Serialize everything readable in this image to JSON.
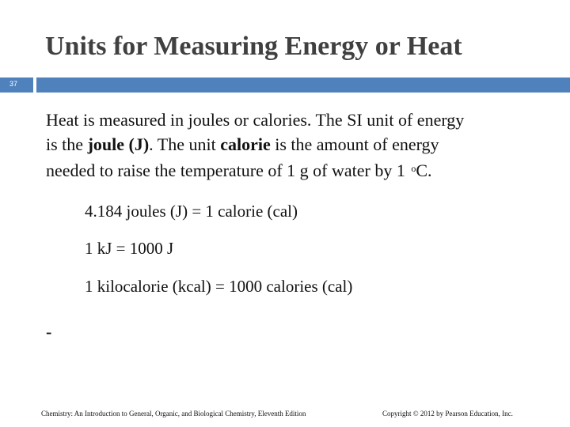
{
  "slide": {
    "title": "Units for Measuring Energy or Heat",
    "number": "37"
  },
  "body": {
    "line1": "Heat is measured in joules or calories. The SI unit of energy",
    "line2_pre": "is the ",
    "line2_bold1": "joule (J)",
    "line2_mid": ". The unit ",
    "line2_bold2": "calorie",
    "line2_post": " is the amount of energy",
    "line3_pre": "needed to raise the temperature of 1 g of water by 1 ",
    "line3_sup": "o",
    "line3_post": "C."
  },
  "equations": [
    "4.184 joules (J) = 1 calorie (cal)",
    "1 kJ = 1000 J",
    "1 kilocalorie (kcal) = 1000 calories (cal)"
  ],
  "bullet_dash": "-",
  "footer": {
    "left": "Chemistry: An Introduction to General, Organic, and Biological Chemistry, Eleventh Edition",
    "right": "Copyright © 2012 by Pearson Education, Inc."
  },
  "colors": {
    "accent_bar": "#4f81bd",
    "title": "#404040"
  }
}
